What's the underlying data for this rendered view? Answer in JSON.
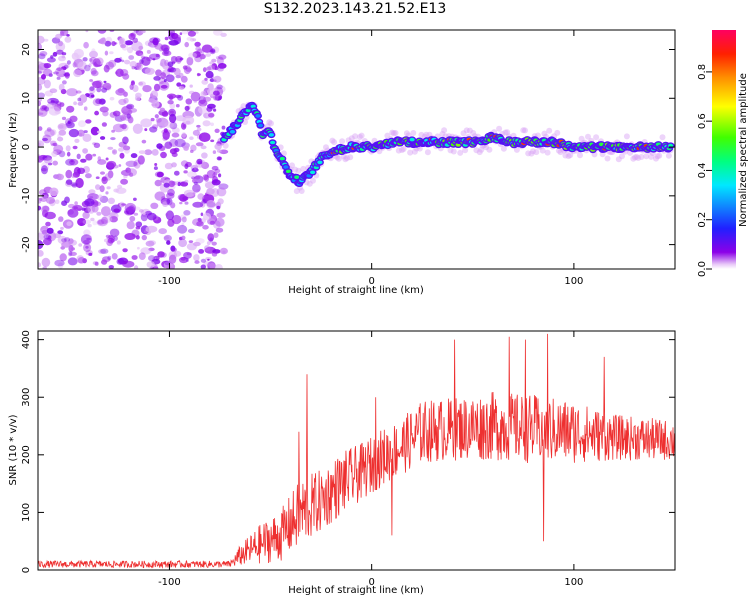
{
  "title": "S132.2023.143.21.52.E13",
  "colors": {
    "snr_line": "#ee3030",
    "axis": "#000000",
    "background": "#ffffff"
  },
  "chart_data": [
    {
      "type": "heatmap",
      "xlabel": "Height of straight line (km)",
      "ylabel": "Frequency (Hz)",
      "xlim": [
        -165,
        150
      ],
      "ylim": [
        -25,
        24
      ],
      "xticks": [
        -100,
        0,
        100
      ],
      "yticks": [
        -20,
        -10,
        0,
        10,
        20
      ],
      "colorbar": {
        "label": "Normalized spectral amplitude",
        "range": [
          0,
          0.97
        ],
        "ticks": [
          0.0,
          0.2,
          0.4,
          0.6,
          0.8
        ],
        "colormap": "rainbow (white-violet-blue-cyan-green-yellow-orange-red-magenta)"
      },
      "ridge": {
        "noise_region_x": [
          -165,
          -75
        ],
        "points": [
          {
            "x": -73,
            "y": 2
          },
          {
            "x": -68,
            "y": 4
          },
          {
            "x": -63,
            "y": 7
          },
          {
            "x": -59,
            "y": 9
          },
          {
            "x": -56,
            "y": 6
          },
          {
            "x": -54,
            "y": 2
          },
          {
            "x": -51,
            "y": 4
          },
          {
            "x": -48,
            "y": 0
          },
          {
            "x": -44,
            "y": -3
          },
          {
            "x": -40,
            "y": -6
          },
          {
            "x": -36,
            "y": -7
          },
          {
            "x": -32,
            "y": -6
          },
          {
            "x": -28,
            "y": -4
          },
          {
            "x": -24,
            "y": -2
          },
          {
            "x": -20,
            "y": -1
          },
          {
            "x": -10,
            "y": 0
          },
          {
            "x": 0,
            "y": 0
          },
          {
            "x": 10,
            "y": 1
          },
          {
            "x": 20,
            "y": 1
          },
          {
            "x": 30,
            "y": 1
          },
          {
            "x": 40,
            "y": 1
          },
          {
            "x": 50,
            "y": 1
          },
          {
            "x": 60,
            "y": 2
          },
          {
            "x": 70,
            "y": 1
          },
          {
            "x": 80,
            "y": 1
          },
          {
            "x": 90,
            "y": 1
          },
          {
            "x": 100,
            "y": 0
          },
          {
            "x": 110,
            "y": 0
          },
          {
            "x": 120,
            "y": 0
          },
          {
            "x": 130,
            "y": 0
          },
          {
            "x": 140,
            "y": 0
          },
          {
            "x": 148,
            "y": 0
          }
        ]
      }
    },
    {
      "type": "line",
      "xlabel": "Height of straight line (km)",
      "ylabel": "SNR (10 * v/v)",
      "xlim": [
        -165,
        150
      ],
      "ylim": [
        0,
        415
      ],
      "xticks": [
        -100,
        0,
        100
      ],
      "yticks": [
        0,
        100,
        200,
        300,
        400
      ],
      "series": [
        {
          "color": "#ee3030",
          "envelope": [
            {
              "x": -165,
              "mean": 10,
              "spread": 6
            },
            {
              "x": -70,
              "mean": 10,
              "spread": 6
            },
            {
              "x": -65,
              "mean": 25,
              "spread": 18
            },
            {
              "x": -55,
              "mean": 45,
              "spread": 35
            },
            {
              "x": -45,
              "mean": 60,
              "spread": 45
            },
            {
              "x": -35,
              "mean": 100,
              "spread": 60
            },
            {
              "x": -25,
              "mean": 120,
              "spread": 55
            },
            {
              "x": -15,
              "mean": 150,
              "spread": 55
            },
            {
              "x": -5,
              "mean": 170,
              "spread": 50
            },
            {
              "x": 5,
              "mean": 195,
              "spread": 50
            },
            {
              "x": 15,
              "mean": 215,
              "spread": 50
            },
            {
              "x": 25,
              "mean": 240,
              "spread": 55
            },
            {
              "x": 40,
              "mean": 245,
              "spread": 55
            },
            {
              "x": 60,
              "mean": 250,
              "spread": 60
            },
            {
              "x": 80,
              "mean": 245,
              "spread": 60
            },
            {
              "x": 100,
              "mean": 240,
              "spread": 55
            },
            {
              "x": 120,
              "mean": 230,
              "spread": 40
            },
            {
              "x": 150,
              "mean": 225,
              "spread": 35
            }
          ],
          "spikes": [
            {
              "x": -32,
              "y": 340
            },
            {
              "x": -36,
              "y": 240
            },
            {
              "x": 41,
              "y": 400
            },
            {
              "x": 68,
              "y": 405
            },
            {
              "x": 76,
              "y": 400
            },
            {
              "x": 87,
              "y": 410
            },
            {
              "x": 85,
              "y": 50
            },
            {
              "x": 115,
              "y": 370
            },
            {
              "x": 10,
              "y": 60
            },
            {
              "x": 2,
              "y": 300
            }
          ]
        }
      ]
    }
  ]
}
